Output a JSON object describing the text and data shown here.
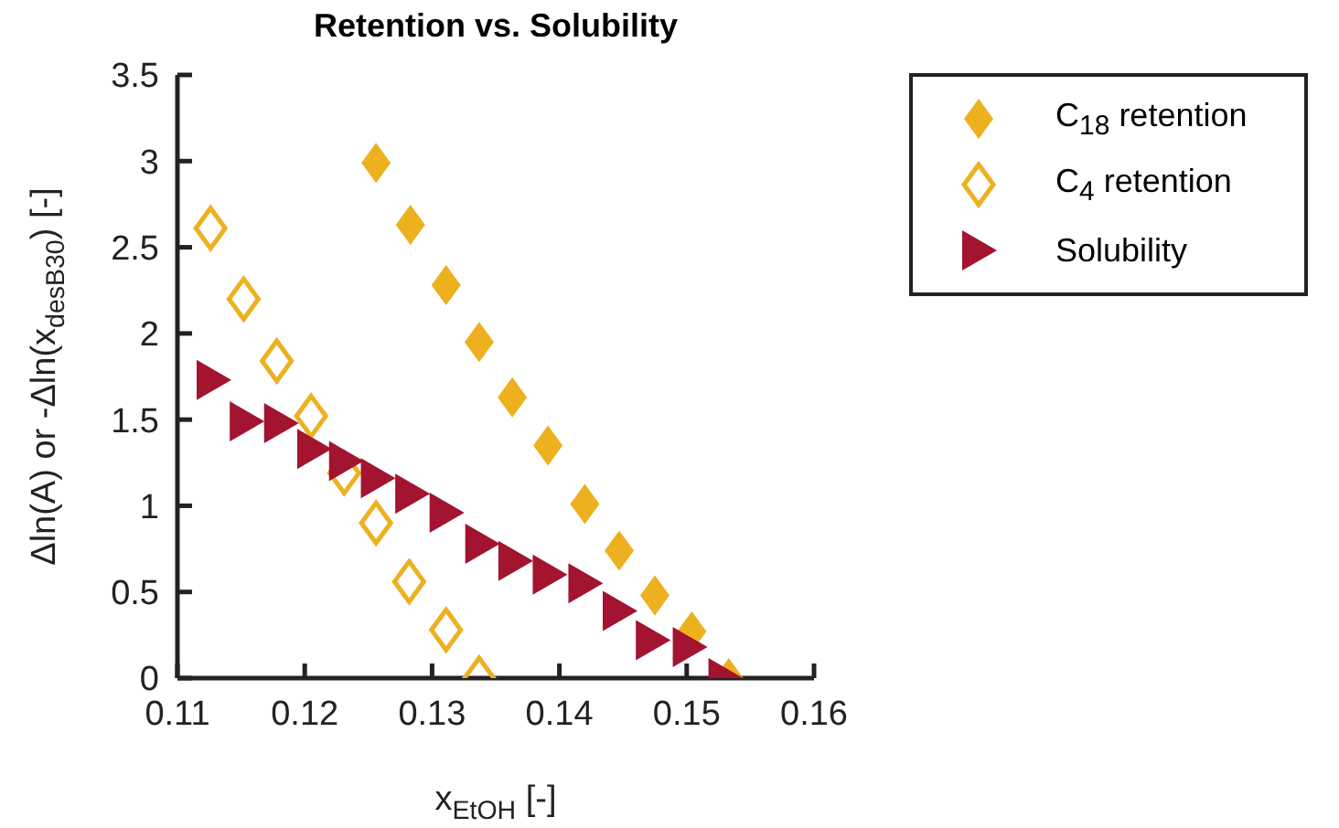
{
  "chart_data": {
    "type": "scatter",
    "title": "Retention vs. Solubility",
    "xlabel": "x$_{EtOH}$ [-]",
    "ylabel": "Δln(A) or -Δln(x$_{desB30}$) [-]",
    "xlim": [
      0.11,
      0.16
    ],
    "xticks": [
      0.11,
      0.12,
      0.13,
      0.14,
      0.15,
      0.16
    ],
    "ylim": [
      0,
      3.5
    ],
    "yticks": [
      0,
      0.5,
      1,
      1.5,
      2,
      2.5,
      3,
      3.5
    ],
    "grid": false,
    "legend": "top right",
    "series": [
      {
        "name": "C$_{18}$ retention",
        "color": "#edb120",
        "marker": "diamond",
        "x": [
          0.1256,
          0.1283,
          0.1311,
          0.1337,
          0.1363,
          0.1391,
          0.142,
          0.1447,
          0.1475,
          0.1504,
          0.1533
        ],
        "values": [
          2.99,
          2.63,
          2.28,
          1.95,
          1.63,
          1.35,
          1.01,
          0.74,
          0.48,
          0.27,
          0
        ]
      },
      {
        "name": "C$_{4}$ retention",
        "color": "#edb120",
        "marker": "diamond-open",
        "x": [
          0.1126,
          0.1152,
          0.1178,
          0.1205,
          0.1231,
          0.1256,
          0.1282,
          0.1311,
          0.1337
        ],
        "values": [
          2.61,
          2.2,
          1.84,
          1.52,
          1.19,
          0.9,
          0.56,
          0.28,
          0
        ]
      },
      {
        "name": "Solubility",
        "color": "#a2142f",
        "marker": "triangle",
        "x": [
          0.1128,
          0.1154,
          0.1181,
          0.1207,
          0.1232,
          0.1257,
          0.1284,
          0.1311,
          0.1339,
          0.1365,
          0.1392,
          0.142,
          0.1447,
          0.1473,
          0.1502,
          0.153
        ],
        "values": [
          1.73,
          1.49,
          1.48,
          1.33,
          1.26,
          1.16,
          1.07,
          0.96,
          0.78,
          0.68,
          0.6,
          0.55,
          0.39,
          0.22,
          0.18,
          0
        ]
      }
    ]
  }
}
